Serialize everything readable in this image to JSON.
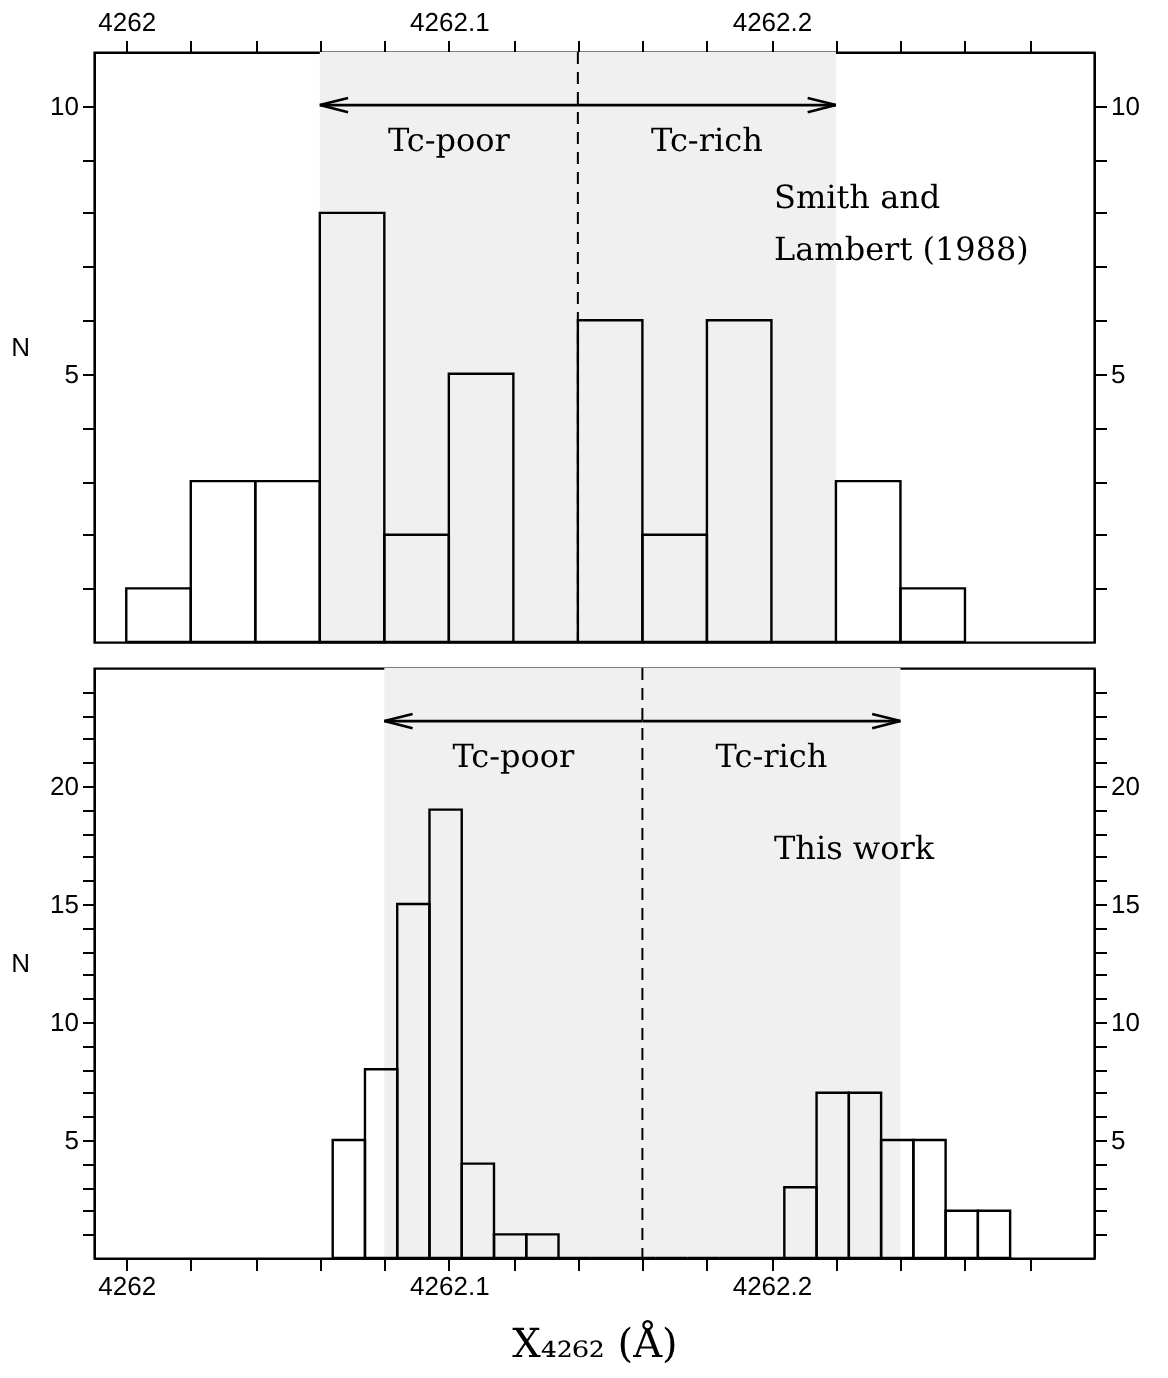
{
  "chart_data": [
    {
      "type": "histogram",
      "bins": [
        4262,
        4262.02,
        4262.04,
        4262.06,
        4262.08,
        4262.1,
        4262.12,
        4262.14,
        4262.16,
        4262.18,
        4262.2,
        4262.22,
        4262.24,
        4262.26
      ],
      "values": [
        1,
        3,
        3,
        8,
        2,
        5,
        0,
        6,
        2,
        6,
        0,
        3,
        1
      ],
      "color": "#000000",
      "xlim": [
        4261.99,
        4262.3
      ],
      "xticks": [
        4262,
        {
          "value": 4262.02,
          "label": null
        },
        {
          "value": 4262.04,
          "label": null
        },
        {
          "value": 4262.06,
          "label": null
        },
        {
          "value": 4262.08,
          "label": null
        },
        4262.1,
        {
          "value": 4262.12,
          "label": null
        },
        {
          "value": 4262.14,
          "label": null
        },
        {
          "value": 4262.16,
          "label": null
        },
        {
          "value": 4262.18,
          "label": null
        },
        4262.2,
        {
          "value": 4262.22,
          "label": null
        },
        {
          "value": 4262.24,
          "label": null
        },
        {
          "value": 4262.26,
          "label": null
        },
        {
          "value": 4262.28,
          "label": null
        }
      ],
      "ylim": [
        0,
        11
      ],
      "yticks": [
        {
          "value": 1,
          "label": null
        },
        {
          "value": 2,
          "label": null
        },
        {
          "value": 3,
          "label": null
        },
        {
          "value": 4,
          "label": null
        },
        5,
        {
          "value": 6,
          "label": null
        },
        {
          "value": 7,
          "label": null
        },
        {
          "value": 8,
          "label": null
        },
        {
          "value": 9,
          "label": null
        },
        10
      ],
      "y2lim": [
        0,
        11
      ],
      "y2ticks": [
        {
          "value": 1,
          "label": null
        },
        {
          "value": 2,
          "label": null
        },
        {
          "value": 3,
          "label": null
        },
        {
          "value": 4,
          "label": null
        },
        5,
        {
          "value": 6,
          "label": null
        },
        {
          "value": 7,
          "label": null
        },
        {
          "value": 8,
          "label": null
        },
        {
          "value": 9,
          "label": null
        },
        10
      ],
      "ylabel": "N",
      "ref_lines": [
        {
          "axis": "x",
          "value": 4262.14,
          "line_style": "dashed"
        }
      ],
      "bands": [
        {
          "axis": "x",
          "from": 4262.06,
          "to": 4262.14,
          "label": "Tc-poor",
          "color": "#f0f0f0"
        },
        {
          "axis": "x",
          "from": 4262.14,
          "to": 4262.22,
          "label": "Tc-rich",
          "color": "#f0f0f0"
        }
      ],
      "annotations": [
        "Smith and Lambert (1988)"
      ]
    },
    {
      "type": "histogram",
      "bins": [
        4262.064,
        4262.074,
        4262.084,
        4262.094,
        4262.104,
        4262.114,
        4262.124,
        4262.134,
        4262.144,
        4262.154,
        4262.164,
        4262.174,
        4262.184,
        4262.194,
        4262.204,
        4262.214,
        4262.224,
        4262.234,
        4262.244,
        4262.254,
        4262.264,
        4262.274
      ],
      "values": [
        5,
        8,
        15,
        19,
        4,
        1,
        1,
        0,
        0,
        0,
        0,
        0,
        0,
        0,
        3,
        7,
        7,
        5,
        5,
        2,
        2
      ],
      "color": "#000000",
      "xlim": [
        4261.99,
        4262.3
      ],
      "xticks": [
        4262,
        {
          "value": 4262.02,
          "label": null
        },
        {
          "value": 4262.04,
          "label": null
        },
        {
          "value": 4262.06,
          "label": null
        },
        {
          "value": 4262.08,
          "label": null
        },
        4262.1,
        {
          "value": 4262.12,
          "label": null
        },
        {
          "value": 4262.14,
          "label": null
        },
        {
          "value": 4262.16,
          "label": null
        },
        {
          "value": 4262.18,
          "label": null
        },
        4262.2,
        {
          "value": 4262.22,
          "label": null
        },
        {
          "value": 4262.24,
          "label": null
        },
        {
          "value": 4262.26,
          "label": null
        },
        {
          "value": 4262.28,
          "label": null
        }
      ],
      "ylim": [
        0,
        25
      ],
      "yticks": [
        {
          "value": 1,
          "label": null
        },
        {
          "value": 2,
          "label": null
        },
        {
          "value": 3,
          "label": null
        },
        {
          "value": 4,
          "label": null
        },
        5,
        {
          "value": 6,
          "label": null
        },
        {
          "value": 7,
          "label": null
        },
        {
          "value": 8,
          "label": null
        },
        {
          "value": 9,
          "label": null
        },
        10,
        {
          "value": 11,
          "label": null
        },
        {
          "value": 12,
          "label": null
        },
        {
          "value": 13,
          "label": null
        },
        {
          "value": 14,
          "label": null
        },
        15,
        {
          "value": 16,
          "label": null
        },
        {
          "value": 17,
          "label": null
        },
        {
          "value": 18,
          "label": null
        },
        {
          "value": 19,
          "label": null
        },
        20,
        {
          "value": 21,
          "label": null
        },
        {
          "value": 22,
          "label": null
        },
        {
          "value": 23,
          "label": null
        },
        {
          "value": 24,
          "label": null
        }
      ],
      "y2lim": [
        0,
        25
      ],
      "y2ticks": [
        {
          "value": 1,
          "label": null
        },
        {
          "value": 2,
          "label": null
        },
        {
          "value": 3,
          "label": null
        },
        {
          "value": 4,
          "label": null
        },
        5,
        {
          "value": 6,
          "label": null
        },
        {
          "value": 7,
          "label": null
        },
        {
          "value": 8,
          "label": null
        },
        {
          "value": 9,
          "label": null
        },
        10,
        {
          "value": 11,
          "label": null
        },
        {
          "value": 12,
          "label": null
        },
        {
          "value": 13,
          "label": null
        },
        {
          "value": 14,
          "label": null
        },
        15,
        {
          "value": 16,
          "label": null
        },
        {
          "value": 17,
          "label": null
        },
        {
          "value": 18,
          "label": null
        },
        {
          "value": 19,
          "label": null
        },
        20,
        {
          "value": 21,
          "label": null
        },
        {
          "value": 22,
          "label": null
        },
        {
          "value": 23,
          "label": null
        },
        {
          "value": 24,
          "label": null
        }
      ],
      "ylabel": "N",
      "xlabel": "X₄₂₆₂ (Å)",
      "ref_lines": [
        {
          "axis": "x",
          "value": 4262.16,
          "line_style": "dashed"
        }
      ],
      "bands": [
        {
          "axis": "x",
          "from": 4262.08,
          "to": 4262.16,
          "label": "Tc-poor",
          "color": "#f0f0f0"
        },
        {
          "axis": "x",
          "from": 4262.16,
          "to": 4262.24,
          "label": "Tc-rich",
          "color": "#f0f0f0"
        }
      ],
      "annotations": [
        "This work"
      ]
    }
  ]
}
